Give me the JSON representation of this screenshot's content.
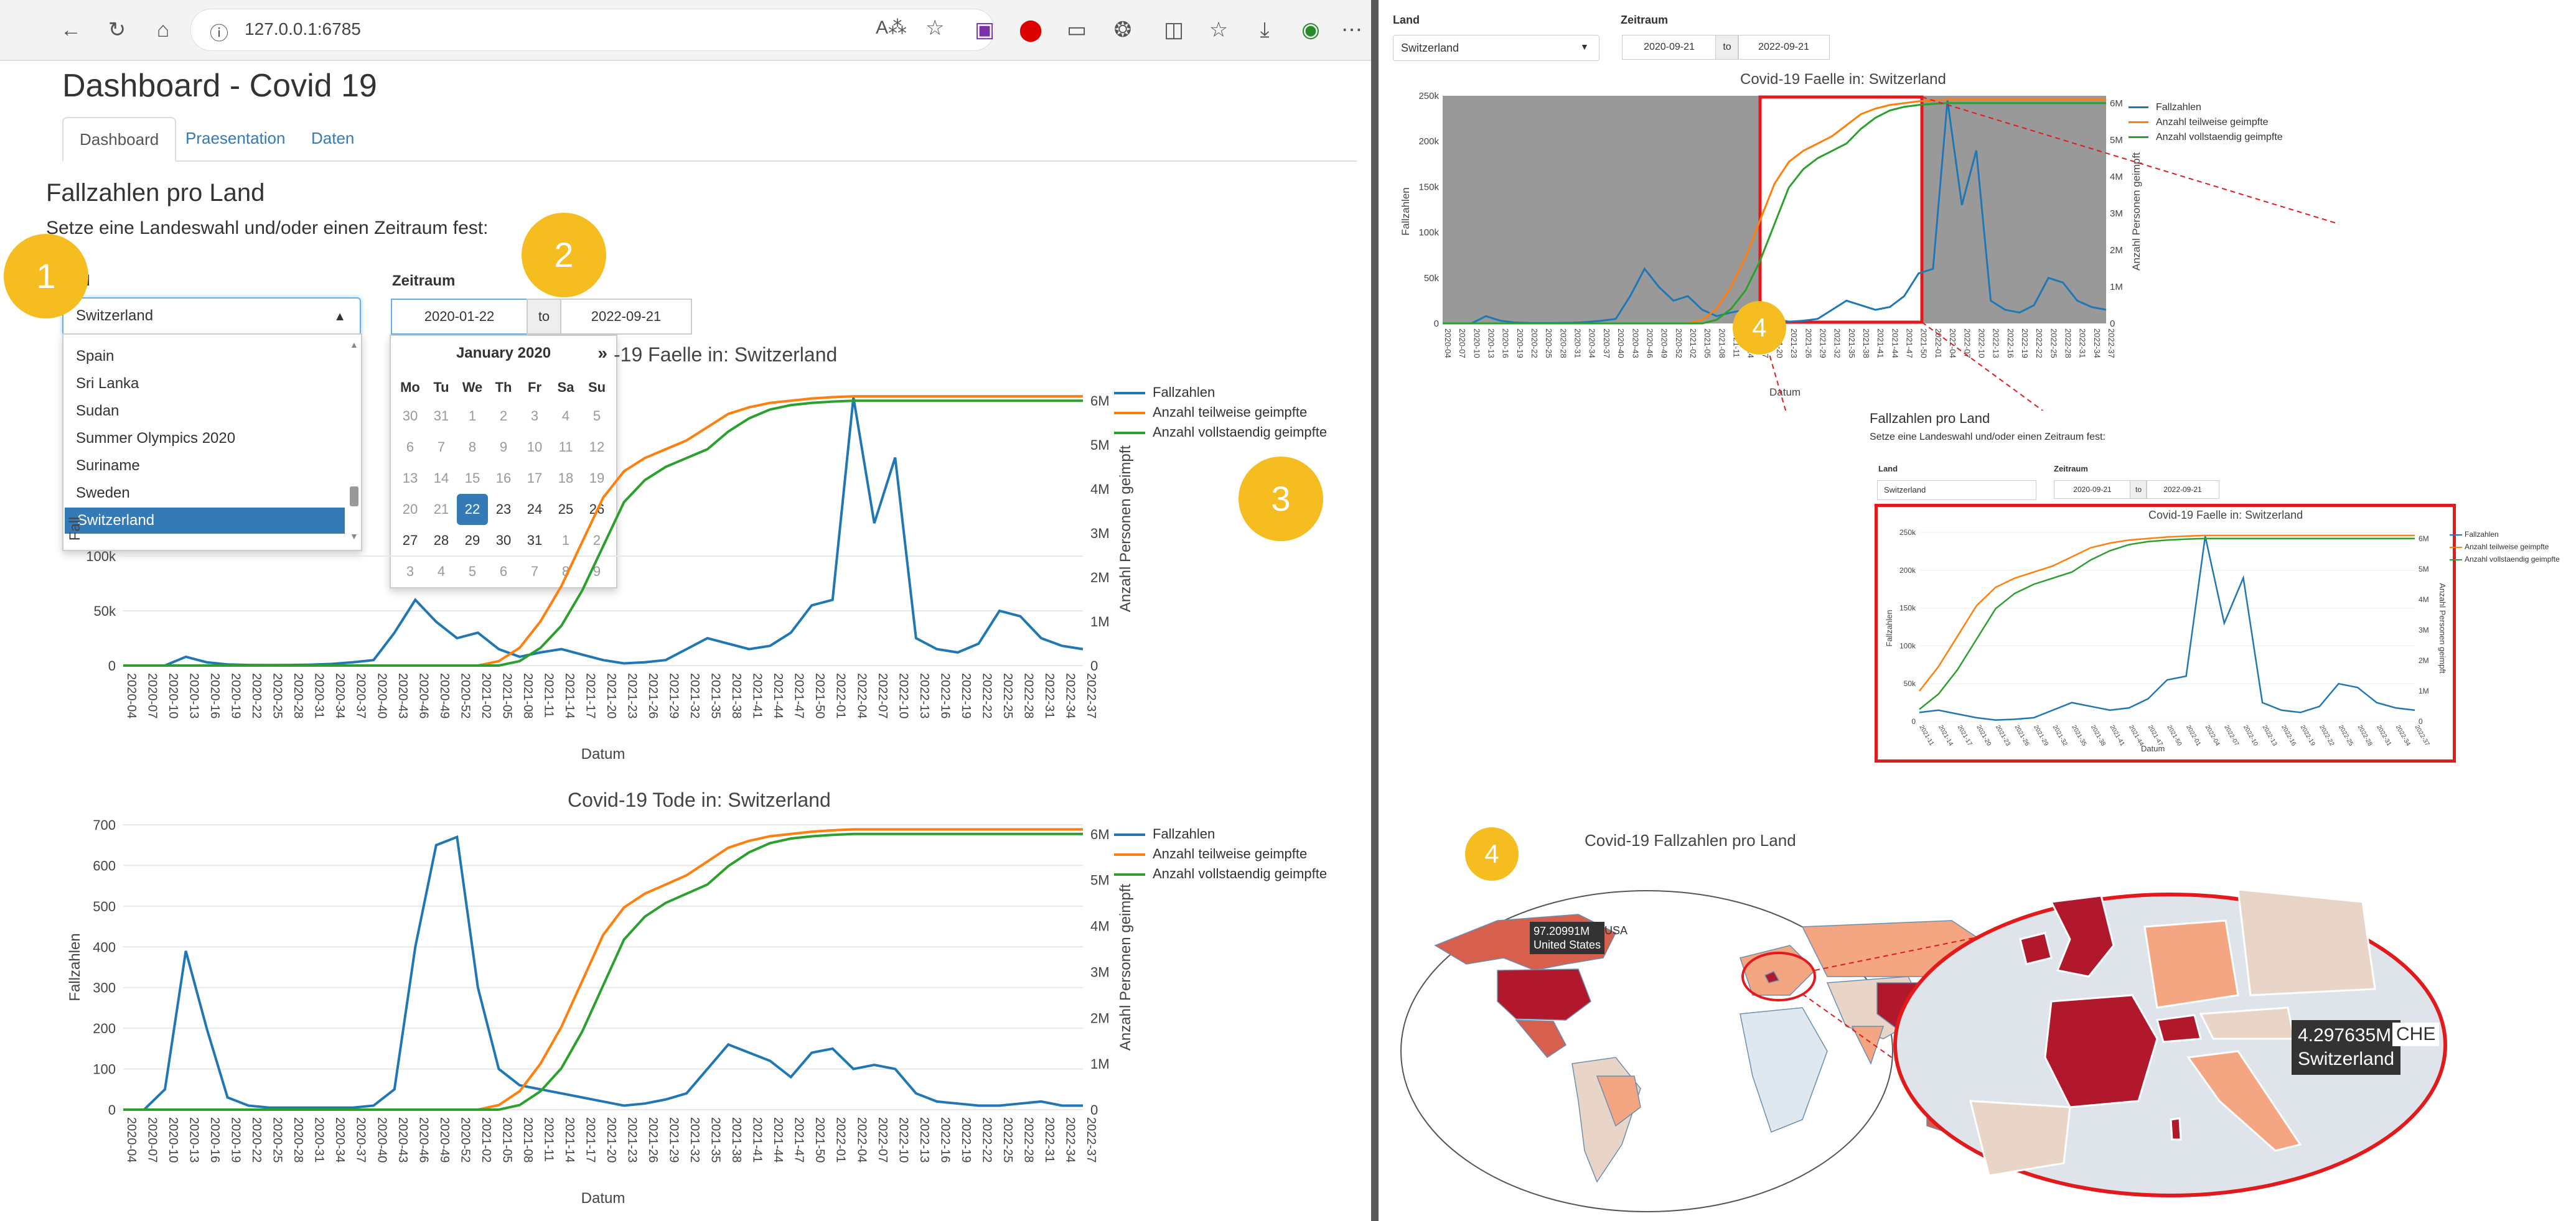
{
  "browser": {
    "url": "127.0.0.1:6785",
    "icons": [
      "back-icon",
      "refresh-icon",
      "home-icon",
      "info-icon",
      "read-aloud-icon",
      "favorite-icon",
      "onenote-icon",
      "opera-icon",
      "collection-icon",
      "extensions-icon",
      "split-icon",
      "favorites-bar-icon",
      "download-icon",
      "profile-icon",
      "more-icon"
    ]
  },
  "page": {
    "title": "Dashboard - Covid 19",
    "tabs": [
      {
        "label": "Dashboard",
        "active": true
      },
      {
        "label": "Praesentation"
      },
      {
        "label": "Daten"
      }
    ],
    "section_title": "Fallzahlen pro Land",
    "instruction": "Setze eine Landeswahl und/oder einen Zeitraum fest:",
    "land_label": "Land",
    "land_label_partial": "d",
    "zeitraum_label": "Zeitraum",
    "selected_country": "Switzerland",
    "country_options": [
      "Spain",
      "Sri Lanka",
      "Sudan",
      "Summer Olympics 2020",
      "Suriname",
      "Sweden",
      "Switzerland"
    ],
    "date_start": "2020-01-22",
    "date_to": "to",
    "date_end": "2022-09-21"
  },
  "calendar": {
    "month": "January 2020",
    "next": "»",
    "weekdays": [
      "Mo",
      "Tu",
      "We",
      "Th",
      "Fr",
      "Sa",
      "Su"
    ],
    "rows": [
      [
        "30",
        "31",
        "1",
        "2",
        "3",
        "4",
        "5"
      ],
      [
        "6",
        "7",
        "8",
        "9",
        "10",
        "11",
        "12"
      ],
      [
        "13",
        "14",
        "15",
        "16",
        "17",
        "18",
        "19"
      ],
      [
        "20",
        "21",
        "22",
        "23",
        "24",
        "25",
        "26"
      ],
      [
        "27",
        "28",
        "29",
        "30",
        "31",
        "1",
        "2"
      ],
      [
        "3",
        "4",
        "5",
        "6",
        "7",
        "8",
        "9"
      ]
    ],
    "active_row": 3,
    "active_col": 2,
    "past_before_row": 3,
    "past_before_col": 2,
    "next_month_from_row": 4,
    "next_month_from_col": 5
  },
  "badges": [
    "1",
    "2",
    "3",
    "4",
    "4"
  ],
  "colors": {
    "fallzahlen": "#1f77b4",
    "teilweise": "#ff7f0e",
    "vollstaendig": "#2ca02c",
    "map_dark": "#b2182b",
    "map_mid": "#d6604d",
    "map_light": "#f4a582",
    "map_pale": "#e8d5c8",
    "highlight": "#e31a1c",
    "badge": "#f5bd1f"
  },
  "legend": [
    "Fallzahlen",
    "Anzahl teilweise geimpfte",
    "Anzahl vollstaendig geimpfte"
  ],
  "chart_data": [
    {
      "type": "line",
      "title": "Covid-19 Faelle in:  Switzerland",
      "title_visible_part": "-19 Faelle in:  Switzerland",
      "xlabel": "Datum",
      "ylabel": "Fallzahlen",
      "ylabel_visible_part": "Fall",
      "y2label": "Anzahl Personen geimpft",
      "y_ticks": [
        "0",
        "50k",
        "100k"
      ],
      "y_tick_values": [
        0,
        50000,
        100000
      ],
      "y2_ticks": [
        "0",
        "1M",
        "2M",
        "3M",
        "4M",
        "5M",
        "6M"
      ],
      "x_ticks": [
        "2020-04",
        "2020-07",
        "2020-10",
        "2020-13",
        "2020-16",
        "2020-19",
        "2020-22",
        "2020-25",
        "2020-28",
        "2020-31",
        "2020-34",
        "2020-37",
        "2020-40",
        "2020-43",
        "2020-46",
        "2020-49",
        "2020-52",
        "2021-02",
        "2021-05",
        "2021-08",
        "2021-11",
        "2021-14",
        "2021-17",
        "2021-20",
        "2021-23",
        "2021-26",
        "2021-29",
        "2021-32",
        "2021-35",
        "2021-38",
        "2021-41",
        "2021-44",
        "2021-47",
        "2021-50",
        "2022-01",
        "2022-04",
        "2022-07",
        "2022-10",
        "2022-13",
        "2022-16",
        "2022-19",
        "2022-22",
        "2022-25",
        "2022-28",
        "2022-31",
        "2022-34",
        "2022-37"
      ],
      "ylim": [
        0,
        250000
      ],
      "y2lim": [
        0,
        6200000
      ],
      "series": [
        {
          "name": "Fallzahlen",
          "axis": "y",
          "values": [
            0,
            0,
            0,
            8000,
            3000,
            1000,
            500,
            400,
            500,
            800,
            1500,
            3000,
            5000,
            30000,
            60000,
            40000,
            25000,
            30000,
            15000,
            8000,
            12000,
            15000,
            10000,
            5000,
            2000,
            3000,
            5000,
            15000,
            25000,
            20000,
            15000,
            18000,
            30000,
            55000,
            60000,
            245000,
            130000,
            190000,
            25000,
            15000,
            12000,
            20000,
            50000,
            45000,
            25000,
            18000,
            15000
          ]
        },
        {
          "name": "Anzahl teilweise geimpfte",
          "axis": "y2",
          "values": [
            0,
            0,
            0,
            0,
            0,
            0,
            0,
            0,
            0,
            0,
            0,
            0,
            0,
            0,
            0,
            0,
            0,
            0,
            100000,
            400000,
            1000000,
            1800000,
            2800000,
            3800000,
            4400000,
            4700000,
            4900000,
            5100000,
            5400000,
            5700000,
            5850000,
            5950000,
            6000000,
            6050000,
            6080000,
            6100000,
            6100000,
            6100000,
            6100000,
            6100000,
            6100000,
            6100000,
            6100000,
            6100000,
            6100000,
            6100000,
            6100000
          ]
        },
        {
          "name": "Anzahl vollstaendig geimpfte",
          "axis": "y2",
          "values": [
            0,
            0,
            0,
            0,
            0,
            0,
            0,
            0,
            0,
            0,
            0,
            0,
            0,
            0,
            0,
            0,
            0,
            0,
            0,
            100000,
            400000,
            900000,
            1700000,
            2700000,
            3700000,
            4200000,
            4500000,
            4700000,
            4900000,
            5300000,
            5600000,
            5800000,
            5900000,
            5950000,
            5980000,
            6000000,
            6000000,
            6000000,
            6000000,
            6000000,
            6000000,
            6000000,
            6000000,
            6000000,
            6000000,
            6000000,
            6000000
          ]
        }
      ]
    },
    {
      "type": "line",
      "title": "Covid-19 Tode in:  Switzerland",
      "xlabel": "Datum",
      "ylabel": "Fallzahlen",
      "y2label": "Anzahl Personen geimpft",
      "y_ticks": [
        "0",
        "100",
        "200",
        "300",
        "400",
        "500",
        "600",
        "700"
      ],
      "y_tick_values": [
        0,
        100,
        200,
        300,
        400,
        500,
        600,
        700
      ],
      "y2_ticks": [
        "0",
        "1M",
        "2M",
        "3M",
        "4M",
        "5M",
        "6M"
      ],
      "x_ticks": [
        "2020-04",
        "2020-07",
        "2020-10",
        "2020-13",
        "2020-16",
        "2020-19",
        "2020-22",
        "2020-25",
        "2020-28",
        "2020-31",
        "2020-34",
        "2020-37",
        "2020-40",
        "2020-43",
        "2020-46",
        "2020-49",
        "2020-52",
        "2021-02",
        "2021-05",
        "2021-08",
        "2021-11",
        "2021-14",
        "2021-17",
        "2021-20",
        "2021-23",
        "2021-26",
        "2021-29",
        "2021-32",
        "2021-35",
        "2021-38",
        "2021-41",
        "2021-44",
        "2021-47",
        "2021-50",
        "2022-01",
        "2022-04",
        "2022-07",
        "2022-10",
        "2022-13",
        "2022-16",
        "2022-19",
        "2022-22",
        "2022-25",
        "2022-28",
        "2022-31",
        "2022-34",
        "2022-37"
      ],
      "ylim": [
        0,
        700
      ],
      "y2lim": [
        0,
        6200000
      ],
      "series": [
        {
          "name": "Fallzahlen",
          "axis": "y",
          "values": [
            0,
            0,
            50,
            390,
            200,
            30,
            10,
            5,
            5,
            5,
            5,
            5,
            10,
            50,
            400,
            650,
            670,
            300,
            100,
            60,
            50,
            40,
            30,
            20,
            10,
            15,
            25,
            40,
            100,
            160,
            140,
            120,
            80,
            140,
            150,
            100,
            110,
            100,
            40,
            20,
            15,
            10,
            10,
            15,
            20,
            10,
            10
          ]
        },
        {
          "name": "Anzahl teilweise geimpfte",
          "axis": "y2",
          "values": [
            0,
            0,
            0,
            0,
            0,
            0,
            0,
            0,
            0,
            0,
            0,
            0,
            0,
            0,
            0,
            0,
            0,
            0,
            100000,
            400000,
            1000000,
            1800000,
            2800000,
            3800000,
            4400000,
            4700000,
            4900000,
            5100000,
            5400000,
            5700000,
            5850000,
            5950000,
            6000000,
            6050000,
            6080000,
            6100000,
            6100000,
            6100000,
            6100000,
            6100000,
            6100000,
            6100000,
            6100000,
            6100000,
            6100000,
            6100000,
            6100000
          ]
        },
        {
          "name": "Anzahl vollstaendig geimpfte",
          "axis": "y2",
          "values": [
            0,
            0,
            0,
            0,
            0,
            0,
            0,
            0,
            0,
            0,
            0,
            0,
            0,
            0,
            0,
            0,
            0,
            0,
            0,
            100000,
            400000,
            900000,
            1700000,
            2700000,
            3700000,
            4200000,
            4500000,
            4700000,
            4900000,
            5300000,
            5600000,
            5800000,
            5900000,
            5950000,
            5980000,
            6000000,
            6000000,
            6000000,
            6000000,
            6000000,
            6000000,
            6000000,
            6000000,
            6000000,
            6000000,
            6000000,
            6000000
          ]
        }
      ]
    }
  ],
  "right_panel": {
    "land_label": "Land",
    "zeitraum_label": "Zeitraum",
    "selected_country": "Switzerland",
    "date_start": "2020-09-21",
    "date_to": "to",
    "date_end": "2022-09-21",
    "chart_title": "Covid-19 Faelle in:  Switzerland",
    "y_ticks": [
      "0",
      "50k",
      "100k",
      "150k",
      "200k",
      "250k"
    ],
    "y2_ticks": [
      "0",
      "1M",
      "2M",
      "3M",
      "4M",
      "5M",
      "6M"
    ],
    "xlabel": "Datum",
    "ylabel": "Fallzahlen",
    "y2label": "Anzahl Personen geimpft",
    "zoom_section_title": "Fallzahlen pro Land",
    "zoom_instruction": "Setze eine Landeswahl und/oder einen Zeitraum fest:",
    "zoom_land": "Land",
    "zoom_zeitraum": "Zeitraum",
    "zoom_country": "Switzerland",
    "zoom_start": "2020-09-21",
    "zoom_to": "to",
    "zoom_end": "2022-09-21",
    "zoom_chart_title": "Covid-19 Faelle in:  Switzerland",
    "map_title": "Covid-19 Fallzahlen pro Land",
    "usa_value": "97.20991M",
    "usa_name": "United States",
    "usa_code": "USA",
    "che_value": "4.297635M",
    "che_name": "Switzerland",
    "che_code": "CHE"
  }
}
